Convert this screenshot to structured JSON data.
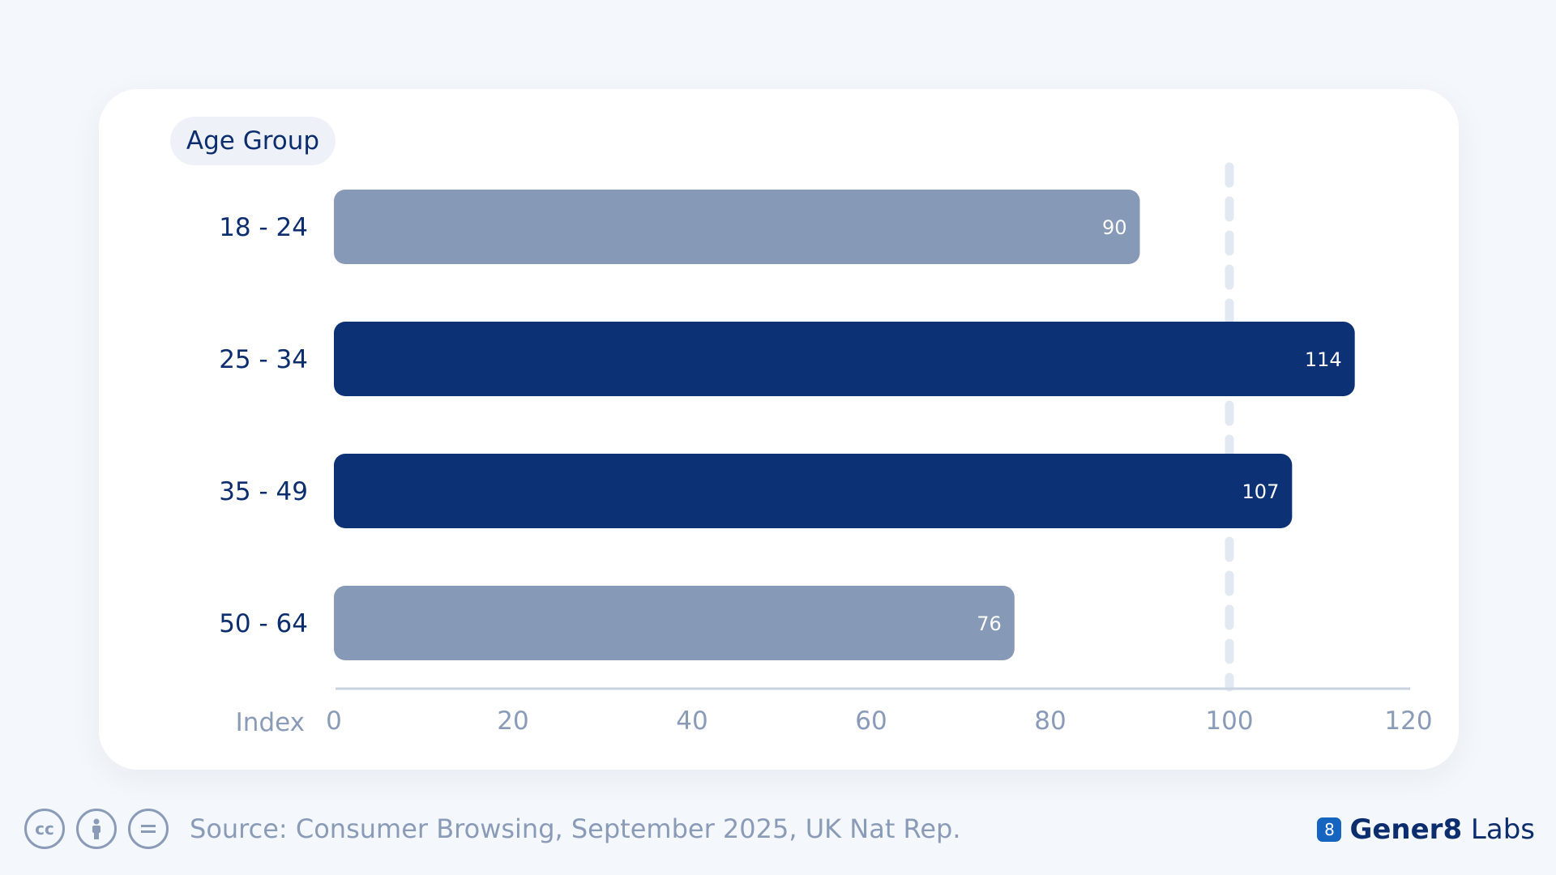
{
  "legend_label": "Age Group",
  "source": "Source: Consumer Browsing, September 2025, UK Nat Rep.",
  "brand": {
    "name_bold": "Gener8",
    "name_light": "Labs",
    "logo_glyph": "8"
  },
  "icons": [
    "cc-icon",
    "by-icon",
    "nd-icon"
  ],
  "colors": {
    "highlight": "#0c3275",
    "muted": "#869ab8",
    "reference_line": "#e3e9f2",
    "axis": "#c9d3e1"
  },
  "chart_data": {
    "type": "bar",
    "orientation": "horizontal",
    "categories": [
      "18 - 24",
      "25 - 34",
      "35 - 49",
      "50 - 64"
    ],
    "values": [
      90,
      114,
      107,
      76
    ],
    "highlighted": [
      false,
      true,
      true,
      false
    ],
    "xlabel": "Index",
    "xlim": [
      0,
      120
    ],
    "xticks": [
      0,
      20,
      40,
      60,
      80,
      100,
      120
    ],
    "reference_line": 100,
    "grid": false
  }
}
